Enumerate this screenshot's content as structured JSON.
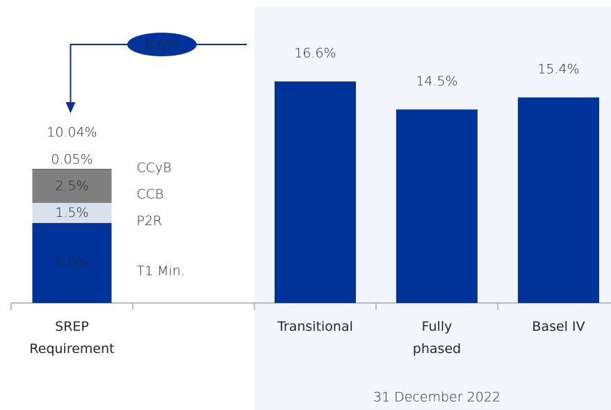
{
  "chart_data": {
    "type": "bar",
    "categories": [
      "SREP Requirement",
      null,
      "Transitional",
      "Fully phased",
      "Basel IV"
    ],
    "values": [
      null,
      null,
      16.6,
      14.5,
      15.4
    ],
    "value_labels": [
      null,
      null,
      "16.6%",
      "14.5%",
      "15.4%"
    ],
    "color": "#003399",
    "ylim": [
      0,
      22.7
    ],
    "stack": {
      "category": 0,
      "segments": [
        {
          "name": "T1 Min.",
          "value": 6.0,
          "value_label": "6.0%",
          "color": "#003399"
        },
        {
          "name": "P2R",
          "value": 1.5,
          "value_label": "1.5%",
          "color": "#dae1ee"
        },
        {
          "name": "CCB",
          "value": 2.5,
          "value_label": "2.5%",
          "color": "#7f7f7f"
        },
        {
          "name": "CCyB",
          "value": 0.05,
          "value_label": "0.05%",
          "color": "#595959"
        }
      ],
      "total": 10.04,
      "total_label": "10.04%",
      "total_color": "#2f52a0"
    },
    "annotation": {
      "value": 6.6,
      "label": "6.6%",
      "color": "#003399"
    },
    "group_label": "31 December 2022",
    "group_background": "#f2f6fc"
  }
}
